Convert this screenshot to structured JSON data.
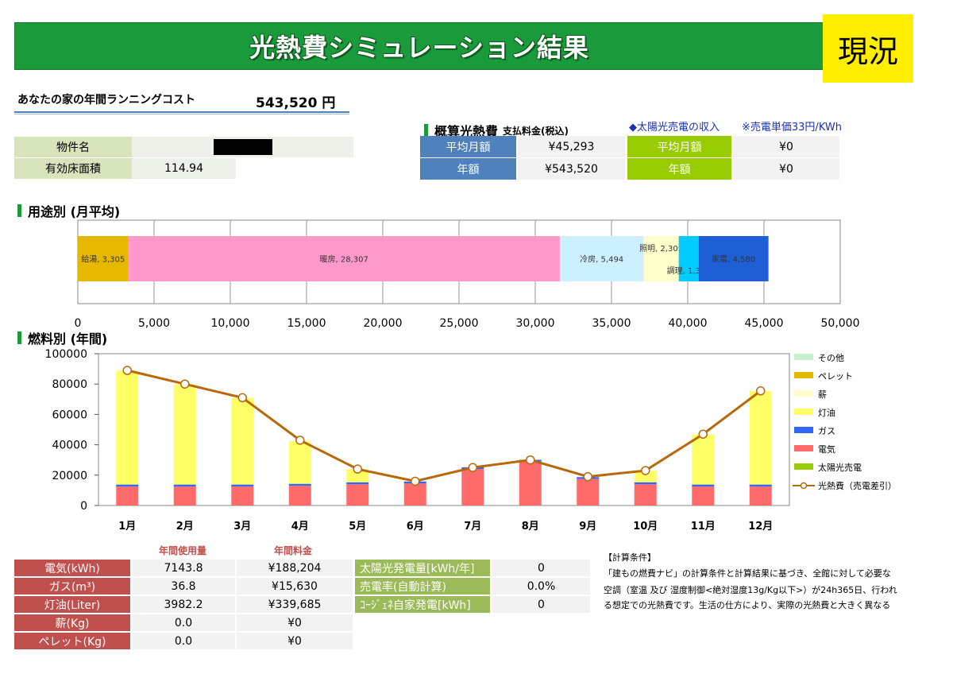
{
  "header": {
    "title": "光熱費シミュレーション結果",
    "status": "現況"
  },
  "summary": {
    "label": "あなたの家の年間ランニングコスト",
    "value": "543,520 円"
  },
  "property": {
    "name_label": "物件名",
    "area_label": "有効床面積",
    "area_value": "114.94"
  },
  "cost_section": {
    "title": "概算光熱費",
    "subtitle": "支払料金(税込)",
    "rows": [
      {
        "label": "平均月額",
        "value": "¥45,293"
      },
      {
        "label": "年額",
        "value": "¥543,520"
      }
    ]
  },
  "solar_section": {
    "title": "◆太陽光売電の収入",
    "note": "※売電単価33円/KWh",
    "rows": [
      {
        "label": "平均月額",
        "value": "¥0"
      },
      {
        "label": "年額",
        "value": "¥0"
      }
    ]
  },
  "usage_section": {
    "title": "用途別 (月平均)"
  },
  "fuel_section": {
    "title": "燃料別 (年間)"
  },
  "colors": {
    "green": "#1a9a3a",
    "electricity": "#ff6b6b",
    "gas": "#3366ff",
    "kerosene": "#ffff66",
    "line": "#b8680a"
  },
  "chart_data": [
    {
      "type": "bar",
      "orientation": "horizontal-stacked",
      "title": "用途別 (月平均)",
      "categories": [
        "給湯",
        "暖房",
        "冷房",
        "照明",
        "調理",
        "家電"
      ],
      "values": [
        3305,
        28307,
        5494,
        2305,
        1303,
        4580
      ],
      "labels": [
        "給湯, 3,305",
        "暖房, 28,307",
        "冷房, 5,494",
        "照明, 2,305",
        "調理, 1,303",
        "家電, 4,580"
      ],
      "colors": [
        "#e6b800",
        "#ff99cc",
        "#ccf0ff",
        "#ffffcc",
        "#00ccff",
        "#1f5fd6"
      ],
      "xlim": [
        0,
        50000
      ],
      "xticks": [
        "0",
        "5,000",
        "10,000",
        "15,000",
        "20,000",
        "25,000",
        "30,000",
        "35,000",
        "40,000",
        "45,000",
        "50,000"
      ]
    },
    {
      "type": "bar",
      "stacked": true,
      "title": "燃料別 (年間)",
      "categories": [
        "1月",
        "2月",
        "3月",
        "4月",
        "5月",
        "6月",
        "7月",
        "8月",
        "9月",
        "10月",
        "11月",
        "12月"
      ],
      "ylim": [
        0,
        100000
      ],
      "yticks": [
        "0",
        "20000",
        "40000",
        "60000",
        "80000",
        "100000"
      ],
      "series": [
        {
          "name": "電気",
          "values": [
            12500,
            12500,
            12500,
            13000,
            14000,
            14500,
            24000,
            29000,
            17500,
            14000,
            12500,
            12500
          ],
          "color": "#ff6b6b"
        },
        {
          "name": "ガス",
          "values": [
            1300,
            1300,
            1300,
            1300,
            1300,
            1300,
            1200,
            1100,
            1200,
            1300,
            1300,
            1300
          ],
          "color": "#3366ff"
        },
        {
          "name": "灯油",
          "values": [
            75000,
            66000,
            57000,
            28000,
            8500,
            0,
            0,
            0,
            0,
            7500,
            33000,
            61500
          ],
          "color": "#ffff66"
        },
        {
          "name": "太陽光売電",
          "values": [
            0,
            0,
            0,
            0,
            0,
            0,
            0,
            0,
            0,
            0,
            0,
            0
          ],
          "color": "#99cc00"
        }
      ],
      "line": {
        "name": "光熱費（売電差引）",
        "values": [
          89000,
          80000,
          71000,
          43000,
          24000,
          16000,
          25000,
          30000,
          19000,
          23000,
          47000,
          75500
        ],
        "color": "#b8680a"
      },
      "legend": [
        {
          "name": "その他",
          "color": "#c6efce",
          "kind": "box"
        },
        {
          "name": "ペレット",
          "color": "#e6b800",
          "kind": "box"
        },
        {
          "name": "薪",
          "color": "#ffffcc",
          "kind": "box"
        },
        {
          "name": "灯油",
          "color": "#ffff66",
          "kind": "box"
        },
        {
          "name": "ガス",
          "color": "#3366ff",
          "kind": "box"
        },
        {
          "name": "電気",
          "color": "#ff6b6b",
          "kind": "box"
        },
        {
          "name": "太陽光売電",
          "color": "#99cc00",
          "kind": "box"
        },
        {
          "name": "光熱費（売電差引）",
          "color": "#b8680a",
          "kind": "line"
        }
      ]
    }
  ],
  "fuel_table": {
    "header_usage": "年間使用量",
    "header_cost": "年間料金",
    "rows": [
      {
        "label": "電気(kWh)",
        "usage": "7143.8",
        "cost": "¥188,204"
      },
      {
        "label": "ガス(m³)",
        "usage": "36.8",
        "cost": "¥15,630"
      },
      {
        "label": "灯油(Liter)",
        "usage": "3982.2",
        "cost": "¥339,685"
      },
      {
        "label": "薪(Kg)",
        "usage": "0.0",
        "cost": "¥0"
      },
      {
        "label": "ペレット(Kg)",
        "usage": "0.0",
        "cost": "¥0"
      }
    ]
  },
  "solar_table": {
    "rows": [
      {
        "label": "太陽光発電量[kWh/年]",
        "value": "0"
      },
      {
        "label": "売電率(自動計算)",
        "value": "0.0%"
      },
      {
        "label": "ｺｰｼﾞｪﾈ自家発電[kWh]",
        "value": "0"
      }
    ]
  },
  "conditions": {
    "title": "【計算条件】",
    "lines": [
      "「建もの燃費ナビ」の計算条件と計算結果に基づき、全館に対して必要な",
      "空調（室温 及び 湿度制御<絶対湿度13g/Kg以下>）が24h365日、行われ",
      "る想定での光熱費です。生活の仕方により、実際の光熱費と大きく異なる"
    ]
  }
}
